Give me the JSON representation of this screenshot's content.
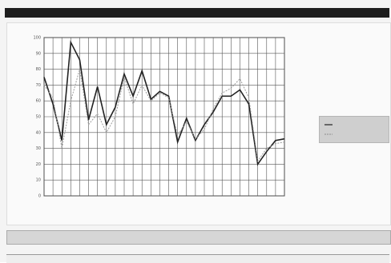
{
  "chart_data": {
    "type": "line",
    "categories": [
      null,
      null,
      null,
      null,
      null,
      null,
      null,
      null,
      null,
      null,
      null,
      null,
      null,
      null,
      null,
      null,
      null,
      null,
      null,
      null,
      null,
      null,
      null,
      null,
      null,
      null,
      null,
      null
    ],
    "series": [
      {
        "color": "#222222",
        "values": [
          75,
          58,
          35,
          97,
          86,
          48,
          69,
          45,
          56,
          77,
          63,
          79,
          61,
          66,
          63,
          34,
          49,
          35,
          45,
          53,
          63,
          63,
          67,
          58,
          20,
          28,
          35,
          36
        ]
      },
      {
        "color": "#9a9a9a",
        "values": [
          70,
          62,
          30,
          60,
          80,
          45,
          52,
          40,
          50,
          75,
          58,
          70,
          60,
          65,
          62,
          38,
          47,
          36,
          42,
          55,
          65,
          68,
          74,
          62,
          22,
          30,
          33,
          34
        ]
      }
    ],
    "ylim": [
      0,
      100
    ],
    "yticks": [
      0,
      10,
      20,
      30,
      40,
      50,
      60,
      70,
      80,
      90,
      100
    ],
    "grid": true
  }
}
